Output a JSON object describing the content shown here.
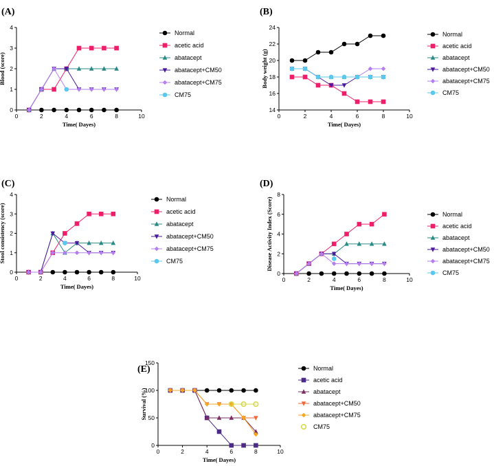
{
  "colors": {
    "normal": "#000000",
    "acetic": "#ee1f6a",
    "abatacept": "#2a8b86",
    "cm50": "#4b1a9e",
    "cm75": "#b57ef0",
    "cm75only": "#5ac8ee",
    "e_acetic": "#4b2b85",
    "e_abatacept": "#7b2c63",
    "e_cm50": "#ef6a3a",
    "e_cm75": "#f5a623",
    "e_cm75only": "#d9d94a"
  },
  "chart_data": [
    {
      "id": "A",
      "panel_label": "(A)",
      "type": "line",
      "xlabel": "Time( Dayes)",
      "ylabel": "Blood (score)",
      "xlim": [
        0,
        10
      ],
      "ylim": [
        0,
        4
      ],
      "xticks": [
        0,
        2,
        4,
        6,
        8,
        10
      ],
      "yticks": [
        0,
        1,
        2,
        3,
        4
      ],
      "series": [
        {
          "name": "Normal",
          "x": [
            1,
            2,
            3,
            4,
            5,
            6,
            7,
            8
          ],
          "values": [
            0,
            0,
            0,
            0,
            0,
            0,
            0,
            0
          ],
          "color_key": "normal",
          "marker": "circle"
        },
        {
          "name": "acetic acid",
          "x": [
            1,
            2,
            3,
            4,
            5,
            6,
            7,
            8
          ],
          "values": [
            0,
            1,
            1,
            2,
            3,
            3,
            3,
            3
          ],
          "color_key": "acetic",
          "marker": "square"
        },
        {
          "name": "abatacept",
          "x": [
            1,
            2,
            3,
            4,
            5,
            6,
            7,
            8
          ],
          "values": [
            0,
            1,
            2,
            2,
            2,
            2,
            2,
            2
          ],
          "color_key": "abatacept",
          "marker": "triangle-up"
        },
        {
          "name": "abatacept+CM50",
          "x": [
            1,
            2,
            3,
            4,
            5,
            6,
            7,
            8
          ],
          "values": [
            0,
            1,
            2,
            2,
            1,
            1,
            1,
            1
          ],
          "color_key": "cm50",
          "marker": "triangle-down"
        },
        {
          "name": "abatacept+CM75",
          "x": [
            1,
            2,
            3,
            4,
            5,
            6,
            7,
            8
          ],
          "values": [
            0,
            1,
            2,
            1,
            1,
            1,
            1,
            1
          ],
          "color_key": "cm75",
          "marker": "diamond"
        },
        {
          "name": "CM75",
          "x": [
            4
          ],
          "values": [
            1
          ],
          "color_key": "cm75only",
          "marker": "circle"
        }
      ]
    },
    {
      "id": "B",
      "panel_label": "(B)",
      "type": "line",
      "xlabel": "Time( Dayes)",
      "ylabel": "Body weight (g)",
      "xlim": [
        0,
        10
      ],
      "ylim": [
        14,
        24
      ],
      "xticks": [
        0,
        2,
        4,
        6,
        8,
        10
      ],
      "yticks": [
        14,
        16,
        18,
        20,
        22,
        24
      ],
      "series": [
        {
          "name": "Normal",
          "x": [
            1,
            2,
            3,
            4,
            5,
            6,
            7,
            8
          ],
          "values": [
            20,
            20,
            21,
            21,
            22,
            22,
            23,
            23
          ],
          "color_key": "normal",
          "marker": "circle"
        },
        {
          "name": "acetic acid",
          "x": [
            1,
            2,
            3,
            4,
            5,
            6,
            7,
            8
          ],
          "values": [
            18,
            18,
            17,
            17,
            16,
            15,
            15,
            15
          ],
          "color_key": "acetic",
          "marker": "square"
        },
        {
          "name": "abatacept",
          "x": [
            1,
            2,
            3,
            4,
            5,
            6,
            7,
            8
          ],
          "values": [
            19,
            19,
            18,
            18,
            18,
            18,
            18,
            18
          ],
          "color_key": "abatacept",
          "marker": "triangle-up"
        },
        {
          "name": "abatacept+CM50",
          "x": [
            1,
            2,
            3,
            4,
            5,
            6,
            7,
            8
          ],
          "values": [
            19,
            19,
            18,
            17,
            17,
            18,
            18,
            18
          ],
          "color_key": "cm50",
          "marker": "triangle-down"
        },
        {
          "name": "abatacept+CM75",
          "x": [
            1,
            2,
            3,
            4,
            5,
            6,
            7,
            8
          ],
          "values": [
            19,
            19,
            18,
            18,
            18,
            18,
            19,
            19
          ],
          "color_key": "cm75",
          "marker": "diamond"
        },
        {
          "name": "CM75",
          "x": [
            1,
            2,
            3,
            4,
            5,
            6,
            7,
            8
          ],
          "values": [
            19,
            19,
            18,
            18,
            18,
            18,
            18,
            18
          ],
          "color_key": "cm75only",
          "marker": "circle"
        }
      ]
    },
    {
      "id": "C",
      "panel_label": "(C)",
      "type": "line",
      "xlabel": "Time( Dayes)",
      "ylabel": "Stool consistency (score)",
      "xlim": [
        0,
        10
      ],
      "ylim": [
        0,
        4
      ],
      "xticks": [
        0,
        2,
        4,
        6,
        8,
        10
      ],
      "yticks": [
        0,
        1,
        2,
        3,
        4
      ],
      "series": [
        {
          "name": "Normal",
          "x": [
            1,
            2,
            3,
            4,
            5,
            6,
            7,
            8
          ],
          "values": [
            0,
            0,
            0,
            0,
            0,
            0,
            0,
            0
          ],
          "color_key": "normal",
          "marker": "circle"
        },
        {
          "name": "acetic acid",
          "x": [
            1,
            2,
            3,
            4,
            5,
            6,
            7,
            8
          ],
          "values": [
            0,
            0,
            1,
            2,
            2.5,
            3,
            3,
            3
          ],
          "color_key": "acetic",
          "marker": "square"
        },
        {
          "name": "abatacept",
          "x": [
            1,
            2,
            3,
            4,
            5,
            6,
            7,
            8
          ],
          "values": [
            0,
            0,
            2,
            1,
            1.5,
            1.5,
            1.5,
            1.5
          ],
          "color_key": "abatacept",
          "marker": "triangle-up"
        },
        {
          "name": "abatacept+CM50",
          "x": [
            1,
            2,
            3,
            4,
            5,
            6,
            7,
            8
          ],
          "values": [
            0,
            0,
            2,
            1.5,
            1.5,
            1,
            1,
            1
          ],
          "color_key": "cm50",
          "marker": "triangle-down"
        },
        {
          "name": "abatacept+CM75",
          "x": [
            1,
            2,
            3,
            4,
            5,
            6,
            7,
            8
          ],
          "values": [
            0,
            0,
            1,
            1,
            1,
            1,
            1,
            1
          ],
          "color_key": "cm75",
          "marker": "diamond"
        },
        {
          "name": "CM75",
          "x": [
            4
          ],
          "values": [
            1.5
          ],
          "color_key": "cm75only",
          "marker": "circle"
        }
      ]
    },
    {
      "id": "D",
      "panel_label": "(D)",
      "type": "line",
      "xlabel": "Time( Dayes)",
      "ylabel": "Disease Activity Index (Score)",
      "xlim": [
        0,
        10
      ],
      "ylim": [
        0,
        8
      ],
      "xticks": [
        0,
        2,
        4,
        6,
        8,
        10
      ],
      "yticks": [
        0,
        2,
        4,
        6,
        8
      ],
      "series": [
        {
          "name": "Normal",
          "x": [
            1,
            2,
            3,
            4,
            5,
            6,
            7,
            8
          ],
          "values": [
            0,
            0,
            0,
            0,
            0,
            0,
            0,
            0
          ],
          "color_key": "normal",
          "marker": "circle"
        },
        {
          "name": "acetic acid",
          "x": [
            1,
            2,
            3,
            4,
            5,
            6,
            7,
            8
          ],
          "values": [
            0,
            1,
            2,
            3,
            4,
            5,
            5,
            6
          ],
          "color_key": "acetic",
          "marker": "square"
        },
        {
          "name": "abatacept",
          "x": [
            1,
            2,
            3,
            4,
            5,
            6,
            7,
            8
          ],
          "values": [
            0,
            1,
            2,
            2,
            3,
            3,
            3,
            3
          ],
          "color_key": "abatacept",
          "marker": "triangle-up"
        },
        {
          "name": "abatacept+CM50",
          "x": [
            1,
            2,
            3,
            4,
            5,
            6,
            7,
            8
          ],
          "values": [
            0,
            1,
            2,
            2,
            1,
            1,
            1,
            1
          ],
          "color_key": "cm50",
          "marker": "triangle-down"
        },
        {
          "name": "abatacept+CM75",
          "x": [
            1,
            2,
            3,
            4,
            5,
            6,
            7,
            8
          ],
          "values": [
            0,
            1,
            2,
            1,
            1,
            1,
            1,
            1
          ],
          "color_key": "cm75",
          "marker": "diamond"
        },
        {
          "name": "CM75",
          "x": [
            4
          ],
          "values": [
            1.5
          ],
          "color_key": "cm75only",
          "marker": "circle"
        }
      ]
    },
    {
      "id": "E",
      "panel_label": "(E)",
      "type": "line",
      "xlabel": "Time( Dayes)",
      "ylabel": "Survival (%)",
      "xlim": [
        0,
        10
      ],
      "ylim": [
        0,
        150
      ],
      "xticks": [
        0,
        2,
        4,
        6,
        8,
        10
      ],
      "yticks": [
        0,
        50,
        100,
        150
      ],
      "series": [
        {
          "name": "Normal",
          "x": [
            1,
            2,
            3,
            4,
            5,
            6,
            7,
            8
          ],
          "values": [
            100,
            100,
            100,
            100,
            100,
            100,
            100,
            100
          ],
          "color_key": "normal",
          "marker": "circle"
        },
        {
          "name": "acetic acid",
          "x": [
            1,
            2,
            3,
            4,
            5,
            6,
            7,
            8
          ],
          "values": [
            100,
            100,
            100,
            50,
            25,
            0,
            0,
            0
          ],
          "color_key": "e_acetic",
          "marker": "square"
        },
        {
          "name": "abatacept",
          "x": [
            1,
            2,
            3,
            4,
            5,
            6,
            7,
            8
          ],
          "values": [
            100,
            100,
            100,
            50,
            50,
            50,
            50,
            25
          ],
          "color_key": "e_abatacept",
          "marker": "triangle-up"
        },
        {
          "name": "abatacept+CM50",
          "x": [
            1,
            2,
            3,
            4,
            5,
            6,
            7,
            8
          ],
          "values": [
            100,
            100,
            100,
            75,
            75,
            75,
            50,
            50
          ],
          "color_key": "e_cm50",
          "marker": "triangle-down"
        },
        {
          "name": "abatacept+CM75",
          "x": [
            1,
            2,
            3,
            4,
            5,
            6,
            7,
            8
          ],
          "values": [
            100,
            100,
            100,
            75,
            75,
            75,
            50,
            20
          ],
          "color_key": "e_cm75",
          "marker": "diamond"
        },
        {
          "name": "CM75",
          "x": [
            6,
            7,
            8
          ],
          "values": [
            75,
            75,
            75
          ],
          "color_key": "e_cm75only",
          "marker": "ring"
        }
      ]
    }
  ]
}
